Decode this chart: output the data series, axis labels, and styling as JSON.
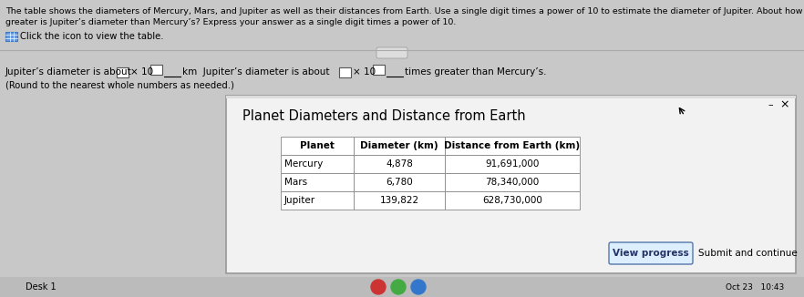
{
  "bg_color": "#c8c8c8",
  "top_text_line1": "The table shows the diameters of Mercury, Mars, and Jupiter as well as their distances from Earth. Use a single digit times a power of 10 to estimate the diameter of Jupiter. About how many times",
  "top_text_line2": "greater is Jupiter’s diameter than Mercury’s? Express your answer as a single digit times a power of 10.",
  "icon_text": "Click the icon to view the table.",
  "answer_pre1": "Jupiter’s diameter is about",
  "answer_x10": "× 10",
  "answer_km": "km  Jupiter’s diameter is about",
  "answer_x10_2": "× 10",
  "answer_times": "times greater than Mercury’s.",
  "answer_note": "(Round to the nearest whole numbers as needed.)",
  "popup_title": "Planet Diameters and Distance from Earth",
  "table_headers": [
    "Planet",
    "Diameter (km)",
    "Distance from Earth (km)"
  ],
  "table_data": [
    [
      "Mercury",
      "4,878",
      "91,691,000"
    ],
    [
      "Mars",
      "6,780",
      "78,340,000"
    ],
    [
      "Jupiter",
      "139,822",
      "628,730,000"
    ]
  ],
  "btn_text": "View progress",
  "btn2_text": "Submit and continue",
  "toolbar_text": "Desk 1",
  "bottom_right": "Oct 23   10:43",
  "icon_colors": [
    "#cc3333",
    "#44aa44",
    "#3377cc"
  ]
}
